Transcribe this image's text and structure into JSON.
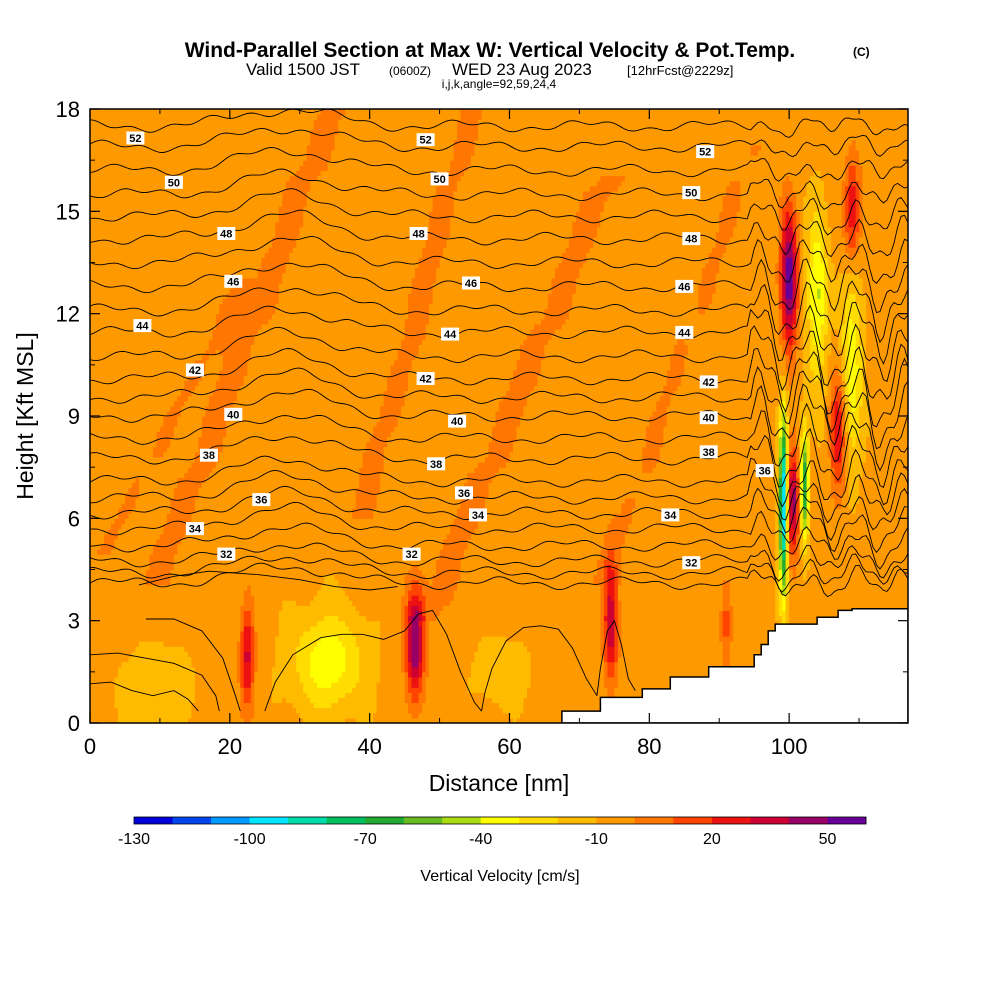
{
  "chart_data": {
    "type": "heatmap",
    "title": "Wind-Parallel Section at Max W: Vertical Velocity & Pot.Temp.",
    "title_mark": "(C)",
    "subtitle_main": "Valid 1500 JST",
    "subtitle_utc": "(0600Z)",
    "subtitle_date": "WED 23 Aug 2023",
    "subtitle_run": "[12hrFcst@2229z]",
    "subtitle_indices": "i,j,k,angle=92,59,24,4",
    "xlabel": "Distance [nm]",
    "ylabel": "Height [Kft MSL]",
    "xlim": [
      0,
      117
    ],
    "ylim": [
      0,
      18
    ],
    "x_ticks": [
      0,
      20,
      40,
      60,
      80,
      100
    ],
    "x_tick_labels": [
      "0",
      "20",
      "40",
      "60",
      "80",
      "100"
    ],
    "y_ticks": [
      0,
      3,
      6,
      9,
      12,
      15,
      18
    ],
    "y_tick_labels": [
      "0",
      "3",
      "6",
      "9",
      "12",
      "15",
      "18"
    ],
    "colorbar": {
      "label": "Vertical Velocity [cm/s]",
      "bounds": [
        -130,
        -120,
        -110,
        -100,
        -90,
        -80,
        -70,
        -60,
        -50,
        -40,
        -30,
        -20,
        -10,
        0,
        10,
        20,
        30,
        40,
        50,
        60
      ],
      "tick_values": [
        -130,
        -100,
        -70,
        -40,
        -10,
        20,
        50
      ],
      "tick_labels": [
        "-130",
        "-100",
        "-70",
        "-40",
        "-10",
        "20",
        "50"
      ],
      "colors": [
        "#0000dd",
        "#0044ee",
        "#0099ff",
        "#00e5ff",
        "#00ddaa",
        "#00c060",
        "#22aa33",
        "#66bb22",
        "#aadd11",
        "#ffff00",
        "#ffdd00",
        "#ffbb00",
        "#ff9900",
        "#ff7700",
        "#ff4400",
        "#ee1111",
        "#cc0033",
        "#990066",
        "#660099"
      ]
    },
    "background_value": -7,
    "features": [
      {
        "kind": "updraft",
        "x": 100,
        "y": 13,
        "sx": 1.2,
        "sy": 2.1,
        "amp": 65
      },
      {
        "kind": "updraft",
        "x": 100.5,
        "y": 6.5,
        "sx": 0.9,
        "sy": 1.5,
        "amp": 55
      },
      {
        "kind": "downdraft",
        "x": 99.2,
        "y": 6.4,
        "sx": 0.6,
        "sy": 2.6,
        "amp": -100
      },
      {
        "kind": "downdraft",
        "x": 102.2,
        "y": 7.0,
        "sx": 0.6,
        "sy": 1.6,
        "amp": -65
      },
      {
        "kind": "downdraft",
        "x": 104,
        "y": 12.5,
        "sx": 1.4,
        "sy": 2.6,
        "amp": -35
      },
      {
        "kind": "downdraft",
        "x": 109,
        "y": 10.5,
        "sx": 1.5,
        "sy": 3.0,
        "amp": -30
      },
      {
        "kind": "updraft",
        "x": 107,
        "y": 8.5,
        "sx": 1.1,
        "sy": 1.8,
        "amp": 40
      },
      {
        "kind": "updraft",
        "x": 109,
        "y": 15,
        "sx": 1.2,
        "sy": 1.6,
        "amp": 38
      },
      {
        "kind": "updraft",
        "x": 46.5,
        "y": 2.3,
        "sx": 1.3,
        "sy": 1.6,
        "amp": 58
      },
      {
        "kind": "updraft",
        "x": 22.5,
        "y": 2.0,
        "sx": 1.0,
        "sy": 1.5,
        "amp": 40
      },
      {
        "kind": "updraft",
        "x": 74.5,
        "y": 3.0,
        "sx": 1.0,
        "sy": 1.8,
        "amp": 45
      },
      {
        "kind": "updraft",
        "x": 91,
        "y": 3.0,
        "sx": 0.8,
        "sy": 1.3,
        "amp": 22
      },
      {
        "kind": "downdraft",
        "x": 34,
        "y": 1.8,
        "sx": 5.0,
        "sy": 1.4,
        "amp": -30
      },
      {
        "kind": "downdraft",
        "x": 10,
        "y": 1.0,
        "sx": 5.0,
        "sy": 1.2,
        "amp": -12
      },
      {
        "kind": "downdraft",
        "x": 59,
        "y": 1.5,
        "sx": 4.0,
        "sy": 1.0,
        "amp": -10
      },
      {
        "kind": "band",
        "x0": 21,
        "y0": 10.5,
        "slope": 0.55,
        "width": 3.0,
        "ylo": 4,
        "yhi": 18,
        "amp": 10
      },
      {
        "kind": "band",
        "x0": 44,
        "y0": 10.0,
        "slope": 0.75,
        "width": 2.5,
        "ylo": 6,
        "yhi": 18,
        "amp": 10
      },
      {
        "kind": "band",
        "x0": 58,
        "y0": 8.0,
        "slope": 0.5,
        "width": 3.0,
        "ylo": 3,
        "yhi": 16,
        "amp": 10
      },
      {
        "kind": "band",
        "x0": 12,
        "y0": 9.0,
        "slope": 0.4,
        "width": 2.0,
        "ylo": 5,
        "yhi": 13,
        "amp": 8
      },
      {
        "kind": "band",
        "x0": 80,
        "y0": 8.0,
        "slope": 0.6,
        "width": 2.5,
        "ylo": 4,
        "yhi": 17,
        "amp": 8
      }
    ],
    "terrain": [
      {
        "x": 67.5,
        "y": 0.35
      },
      {
        "x": 73,
        "y": 0.75
      },
      {
        "x": 79,
        "y": 1.0
      },
      {
        "x": 83,
        "y": 1.35
      },
      {
        "x": 88.5,
        "y": 1.65
      },
      {
        "x": 95,
        "y": 2.0
      },
      {
        "x": 96,
        "y": 2.3
      },
      {
        "x": 97,
        "y": 2.7
      },
      {
        "x": 98,
        "y": 2.9
      },
      {
        "x": 104,
        "y": 3.1
      },
      {
        "x": 107,
        "y": 3.3
      },
      {
        "x": 109,
        "y": 3.35
      },
      {
        "x": 117,
        "y": 3.35
      }
    ],
    "theta_contours": [
      {
        "level": "30",
        "y": 4.1,
        "sink": 0.5
      },
      {
        "level": "31",
        "y": 4.4,
        "sink": 0.5
      },
      {
        "level": "32",
        "y": 4.75,
        "sink": 0.5
      },
      {
        "level": "33",
        "y": 5.2,
        "sink": 0.55
      },
      {
        "level": "34",
        "y": 5.7,
        "sink": 0.6
      },
      {
        "level": "35",
        "y": 6.15,
        "sink": 0.6
      },
      {
        "level": "36",
        "y": 6.6,
        "sink": 0.65
      },
      {
        "level": "37",
        "y": 7.1,
        "sink": 0.65
      },
      {
        "level": "38",
        "y": 7.75,
        "sink": 0.7
      },
      {
        "level": "39",
        "y": 8.35,
        "sink": 0.7
      },
      {
        "level": "40",
        "y": 9.0,
        "sink": 0.7
      },
      {
        "level": "41",
        "y": 9.55,
        "sink": 0.7
      },
      {
        "level": "42",
        "y": 10.1,
        "sink": 0.7
      },
      {
        "level": "43",
        "y": 10.75,
        "sink": 0.7
      },
      {
        "level": "44",
        "y": 11.45,
        "sink": 0.7
      },
      {
        "level": "45",
        "y": 12.1,
        "sink": 0.7
      },
      {
        "level": "46",
        "y": 12.8,
        "sink": 0.7
      },
      {
        "level": "47",
        "y": 13.5,
        "sink": 0.7
      },
      {
        "level": "48",
        "y": 14.2,
        "sink": 0.7
      },
      {
        "level": "49",
        "y": 14.85,
        "sink": 0.65
      },
      {
        "level": "50",
        "y": 15.5,
        "sink": 0.6
      },
      {
        "level": "51",
        "y": 16.2,
        "sink": 0.6
      },
      {
        "level": "52",
        "y": 16.9,
        "sink": 0.55
      },
      {
        "level": "53",
        "y": 17.5,
        "sink": 0.5
      }
    ],
    "contour_labels": [
      {
        "text": "52",
        "x": 6.5,
        "y": 17.15
      },
      {
        "text": "52",
        "x": 48,
        "y": 17.1
      },
      {
        "text": "52",
        "x": 88,
        "y": 16.75
      },
      {
        "text": "50",
        "x": 12,
        "y": 15.85
      },
      {
        "text": "50",
        "x": 50,
        "y": 15.95
      },
      {
        "text": "50",
        "x": 86,
        "y": 15.55
      },
      {
        "text": "48",
        "x": 19.5,
        "y": 14.35
      },
      {
        "text": "48",
        "x": 47,
        "y": 14.35
      },
      {
        "text": "48",
        "x": 86,
        "y": 14.2
      },
      {
        "text": "46",
        "x": 20.5,
        "y": 12.95
      },
      {
        "text": "46",
        "x": 54.5,
        "y": 12.9
      },
      {
        "text": "46",
        "x": 85,
        "y": 12.8
      },
      {
        "text": "44",
        "x": 7.5,
        "y": 11.65
      },
      {
        "text": "44",
        "x": 51.5,
        "y": 11.4
      },
      {
        "text": "44",
        "x": 85,
        "y": 11.45
      },
      {
        "text": "42",
        "x": 15,
        "y": 10.35
      },
      {
        "text": "42",
        "x": 48,
        "y": 10.1
      },
      {
        "text": "42",
        "x": 88.5,
        "y": 10.0
      },
      {
        "text": "40",
        "x": 20.5,
        "y": 9.05
      },
      {
        "text": "40",
        "x": 52.5,
        "y": 8.85
      },
      {
        "text": "40",
        "x": 88.5,
        "y": 8.95
      },
      {
        "text": "38",
        "x": 17,
        "y": 7.85
      },
      {
        "text": "38",
        "x": 49.5,
        "y": 7.6
      },
      {
        "text": "38",
        "x": 88.5,
        "y": 7.95
      },
      {
        "text": "36",
        "x": 24.5,
        "y": 6.55
      },
      {
        "text": "36",
        "x": 53.5,
        "y": 6.75
      },
      {
        "text": "36",
        "x": 96.5,
        "y": 7.4
      },
      {
        "text": "34",
        "x": 15,
        "y": 5.7
      },
      {
        "text": "34",
        "x": 55.5,
        "y": 6.1
      },
      {
        "text": "34",
        "x": 83,
        "y": 6.1
      },
      {
        "text": "32",
        "x": 19.5,
        "y": 4.95
      },
      {
        "text": "32",
        "x": 46,
        "y": 4.95
      },
      {
        "text": "32",
        "x": 86,
        "y": 4.7
      }
    ],
    "zero_contours": [
      [
        [
          0,
          2.0
        ],
        [
          4,
          2.05
        ],
        [
          8,
          1.9
        ],
        [
          12,
          1.75
        ],
        [
          16,
          1.4
        ],
        [
          18,
          0.8
        ],
        [
          18.5,
          0.35
        ]
      ],
      [
        [
          8,
          3.05
        ],
        [
          12,
          3.05
        ],
        [
          16,
          2.7
        ],
        [
          19,
          1.9
        ],
        [
          20.8,
          0.8
        ],
        [
          21.5,
          0.35
        ]
      ],
      [
        [
          0,
          1.15
        ],
        [
          3,
          1.2
        ],
        [
          6,
          0.95
        ],
        [
          9,
          0.8
        ],
        [
          12,
          0.95
        ],
        [
          14,
          0.7
        ],
        [
          15.5,
          0.35
        ]
      ],
      [
        [
          25,
          0.35
        ],
        [
          26.5,
          1.2
        ],
        [
          29,
          2.0
        ],
        [
          33,
          2.5
        ],
        [
          36,
          2.6
        ],
        [
          39,
          2.6
        ],
        [
          42,
          2.45
        ],
        [
          45,
          2.7
        ],
        [
          47,
          3.2
        ],
        [
          49,
          3.3
        ],
        [
          51,
          2.6
        ],
        [
          53,
          1.5
        ],
        [
          55,
          0.6
        ],
        [
          56,
          0.35
        ]
      ],
      [
        [
          56,
          0.35
        ],
        [
          56.5,
          0.9
        ],
        [
          57.5,
          1.6
        ],
        [
          59.5,
          2.4
        ],
        [
          62,
          2.8
        ],
        [
          64.5,
          2.85
        ],
        [
          67,
          2.75
        ],
        [
          69,
          2.2
        ],
        [
          71,
          1.3
        ],
        [
          72.5,
          0.8
        ]
      ],
      [
        [
          72.5,
          0.8
        ],
        [
          73,
          1.6
        ],
        [
          74,
          2.7
        ],
        [
          75,
          3.0
        ],
        [
          76,
          2.3
        ],
        [
          77,
          1.3
        ],
        [
          78,
          0.95
        ]
      ],
      [
        [
          7,
          4.05
        ],
        [
          12,
          4.3
        ],
        [
          17,
          4.45
        ],
        [
          24,
          4.35
        ],
        [
          30,
          4.2
        ],
        [
          35,
          4.0
        ],
        [
          40,
          3.9
        ],
        [
          44,
          4.0
        ]
      ]
    ]
  }
}
